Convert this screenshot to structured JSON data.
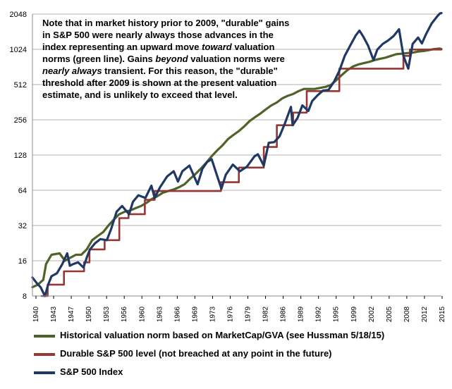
{
  "chart_data": {
    "type": "line",
    "title": "",
    "xlabel": "",
    "ylabel": "",
    "y_scale": "log2",
    "xlim": [
      1940,
      2015.3
    ],
    "ylim": [
      8,
      2048
    ],
    "grid": true,
    "legend_position": "bottom",
    "y_ticks": [
      "8",
      "16",
      "32",
      "64",
      "128",
      "256",
      "512",
      "1024",
      "2048"
    ],
    "x_ticks": [
      "1940",
      "1943",
      "1947",
      "1950",
      "1953",
      "1956",
      "1960",
      "1963",
      "1966",
      "1969",
      "1973",
      "1976",
      "1979",
      "1982",
      "1986",
      "1989",
      "1992",
      "1995",
      "1999",
      "2002",
      "2005",
      "2008",
      "2012",
      "2015"
    ],
    "annotation": {
      "p1": "Note that in market history prior to 2009,  \"durable\" gains in S&P 500 were nearly always those advances in the index representing an upward move ",
      "p1_em": "toward",
      "p2": " valuation norms (green line). Gains ",
      "p2_em": "beyond",
      "p3": " valuation norms were ",
      "p3_em": "nearly always",
      "p4": " transient.  For this reason, the \"durable\" threshold after 2009  is shown at the present valuation estimate, and is unlikely to exceed that level."
    },
    "series": [
      {
        "name": "Historical valuation norm based on MarketCap/GVA (see Hussman 5/18/15)",
        "color": "#4f6228",
        "x": [
          1940,
          1941,
          1942,
          1942.5,
          1943.5,
          1945,
          1946,
          1947,
          1948,
          1949,
          1950,
          1951,
          1952,
          1953,
          1954,
          1955,
          1956,
          1957,
          1958,
          1959,
          1960,
          1961,
          1962,
          1963,
          1964,
          1965,
          1966,
          1967,
          1968,
          1969,
          1970,
          1971,
          1972,
          1973,
          1974,
          1975,
          1976,
          1977,
          1978,
          1979,
          1980,
          1981,
          1982,
          1983,
          1984,
          1985,
          1986,
          1987,
          1988,
          1989,
          1990,
          1991,
          1992,
          1993,
          1994,
          1995,
          1996,
          1997,
          1998,
          1999,
          2000,
          2001,
          2002,
          2003,
          2004,
          2005,
          2006,
          2007,
          2008,
          2009,
          2010,
          2011,
          2012,
          2013,
          2014,
          2015,
          2015.3
        ],
        "values": [
          9.5,
          10,
          11,
          15,
          18,
          18.5,
          16,
          17,
          18,
          18,
          20,
          24,
          26,
          28,
          32,
          36,
          40,
          42,
          43,
          45,
          47,
          50,
          54,
          57,
          61,
          63,
          65,
          68,
          72,
          80,
          88,
          98,
          110,
          125,
          140,
          155,
          175,
          190,
          205,
          225,
          250,
          270,
          290,
          315,
          340,
          360,
          390,
          410,
          425,
          450,
          470,
          470,
          470,
          480,
          490,
          510,
          560,
          620,
          680,
          730,
          760,
          780,
          800,
          830,
          850,
          870,
          900,
          930,
          940,
          950,
          960,
          980,
          990,
          1010,
          1030,
          1040,
          1030
        ]
      },
      {
        "name": "Durable S&P 500 level (not breached at any point in the future)",
        "color": "#953735",
        "x": [
          1941.7,
          1942.8,
          1942.8,
          1945.8,
          1945.8,
          1949.5,
          1949.5,
          1950.5,
          1950.5,
          1953.3,
          1953.3,
          1956.0,
          1956.0,
          1957.7,
          1957.7,
          1960.7,
          1960.7,
          1962.5,
          1962.5,
          1974.7,
          1974.7,
          1978.0,
          1978.0,
          1982.6,
          1982.6,
          1985.0,
          1985.0,
          1988.0,
          1988.0,
          1990.5,
          1990.5,
          1996.5,
          1996.5,
          2008.3,
          2008.3,
          2009.5,
          2009.5,
          2015.3
        ],
        "values": [
          8,
          8,
          10,
          10,
          13,
          13,
          15.5,
          15.5,
          20,
          20,
          24,
          24,
          37,
          37,
          40,
          40,
          53,
          53,
          63,
          63,
          75,
          75,
          100,
          100,
          150,
          150,
          230,
          230,
          295,
          295,
          450,
          450,
          700,
          700,
          900,
          900,
          1020,
          1020
        ]
      },
      {
        "name": "S&P 500 Index",
        "color": "#1f3864",
        "x": [
          1940,
          1940.8,
          1941.5,
          1942.3,
          1942.9,
          1943.5,
          1944.5,
          1945.5,
          1946.4,
          1946.9,
          1947.5,
          1948.4,
          1949.4,
          1950.0,
          1950.6,
          1951.5,
          1952.5,
          1953.7,
          1954.5,
          1955.5,
          1956.5,
          1957.8,
          1958.5,
          1959.5,
          1960.8,
          1961.9,
          1962.5,
          1963.5,
          1964.8,
          1966.0,
          1966.8,
          1967.6,
          1968.9,
          1970.4,
          1971.3,
          1972.2,
          1973.0,
          1974.0,
          1974.8,
          1975.6,
          1976.9,
          1978.2,
          1979.5,
          1980.9,
          1981.5,
          1982.6,
          1983.5,
          1984.5,
          1985.5,
          1986.5,
          1987.6,
          1987.9,
          1988.8,
          1989.7,
          1990.8,
          1991.5,
          1992.5,
          1993.5,
          1994.5,
          1995.5,
          1996.5,
          1997.5,
          1998.5,
          1999.5,
          2000.2,
          2000.9,
          2001.8,
          2002.8,
          2003.5,
          2004.5,
          2005.5,
          2006.5,
          2007.5,
          2008.3,
          2009.2,
          2010.0,
          2011.0,
          2011.7,
          2012.5,
          2013.5,
          2014.5,
          2015.0,
          2015.3
        ],
        "values": [
          11.5,
          10.3,
          9.5,
          8,
          10,
          11.8,
          12.5,
          15,
          18.5,
          14.5,
          15,
          15.5,
          14,
          17,
          20,
          22.5,
          24.5,
          24,
          30,
          42,
          47,
          40,
          51,
          58,
          55,
          70,
          55,
          68,
          84,
          93,
          76,
          93,
          104,
          72,
          98,
          112,
          118,
          85,
          66,
          87,
          106,
          93,
          102,
          125,
          130,
          104,
          163,
          165,
          185,
          240,
          330,
          230,
          265,
          340,
          305,
          370,
          415,
          455,
          460,
          540,
          670,
          900,
          1100,
          1340,
          1480,
          1320,
          1100,
          830,
          1020,
          1140,
          1220,
          1330,
          1520,
          900,
          700,
          1140,
          1290,
          1150,
          1390,
          1700,
          1950,
          2070,
          2090
        ]
      }
    ]
  }
}
